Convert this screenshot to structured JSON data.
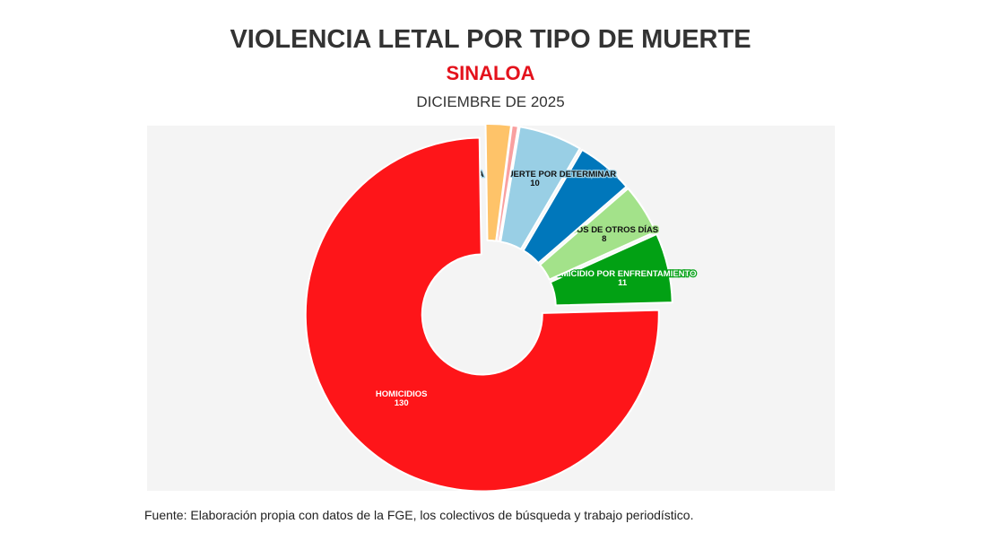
{
  "header": {
    "title": "VIOLENCIA LETAL POR TIPO DE MUERTE",
    "subtitle": "SINALOA",
    "date": "DICIEMBRE DE 2025"
  },
  "footer": {
    "source": "Fuente: Elaboración propia con datos de la FGE, los colectivos de búsqueda y trabajo periodístico."
  },
  "chart_data": {
    "type": "pie",
    "variant": "donut",
    "title": "VIOLENCIA LETAL POR TIPO DE MUERTE",
    "subtitle": "SINALOA",
    "period": "DICIEMBRE DE 2025",
    "slices": [
      {
        "label": "HOMICIDIO POR ENFRENTAMIENTO",
        "value": 11,
        "color": "#02a114",
        "show_label": true,
        "label_color": "#ffffff",
        "label_outline": "#02a114"
      },
      {
        "label": "HERIDOS DE OTROS DÍAS",
        "value": 8,
        "color": "#a3e28a",
        "show_label": true,
        "label_color": "#111111",
        "label_outline": "#a3e28a"
      },
      {
        "label": "",
        "value": 9,
        "color": "#0077bb",
        "show_label": false
      },
      {
        "label": "CAUSA DE MUERTE POR DETERMINAR",
        "value": 10,
        "color": "#99cfe5",
        "show_label": true,
        "label_color": "#111111",
        "label_outline": "#99cfe5"
      },
      {
        "label": "",
        "value": 1,
        "color": "#f9a0a0",
        "show_label": false
      },
      {
        "label": "",
        "value": 4,
        "color": "#fec369",
        "show_label": false
      },
      {
        "label": "HOMICIDIOS",
        "value": 130,
        "color": "#fe1519",
        "show_label": true,
        "label_color": "#ffffff",
        "label_outline": "#fe1519"
      }
    ],
    "legend": "none",
    "background": "#f4f4f4"
  }
}
